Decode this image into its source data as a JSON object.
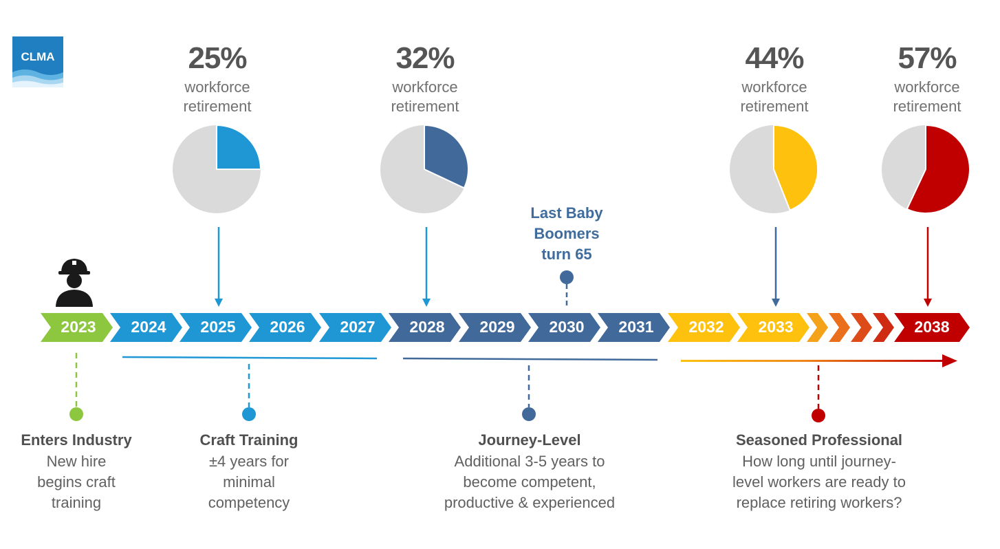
{
  "logo": {
    "text": "CLMA",
    "bg": "#1f7fc0"
  },
  "colors": {
    "green": "#8dc63f",
    "lightblue": "#1e97d4",
    "darkblue": "#41699a",
    "yellow": "#fdc10e",
    "red": "#c00000",
    "grey": "#dadada"
  },
  "retirement": [
    {
      "value": 25,
      "percent_label": "25%",
      "line1": "workforce",
      "line2": "retirement",
      "color": "#1e97d4"
    },
    {
      "value": 32,
      "percent_label": "32%",
      "line1": "workforce",
      "line2": "retirement",
      "color": "#41699a"
    },
    {
      "value": 44,
      "percent_label": "44%",
      "line1": "workforce",
      "line2": "retirement",
      "color": "#fdc10e"
    },
    {
      "value": 57,
      "percent_label": "57%",
      "line1": "workforce",
      "line2": "retirement",
      "color": "#c00000"
    }
  ],
  "timeline": {
    "years": [
      "2023",
      "2024",
      "2025",
      "2026",
      "2027",
      "2028",
      "2029",
      "2030",
      "2031",
      "2032",
      "2033",
      "2038"
    ]
  },
  "milestone": {
    "line1": "Last Baby",
    "line2": "Boomers",
    "line3": "turn 65"
  },
  "stages": [
    {
      "title": "Enters Industry",
      "desc1": "New hire",
      "desc2": "begins craft",
      "desc3": "training"
    },
    {
      "title": "Craft Training",
      "desc1": "±4 years for",
      "desc2": "minimal",
      "desc3": "competency"
    },
    {
      "title": "Journey-Level",
      "desc1": "Additional 3-5 years to",
      "desc2": "become competent,",
      "desc3": "productive & experienced"
    },
    {
      "title": "Seasoned Professional",
      "desc1": "How long until journey-",
      "desc2": "level workers are ready to",
      "desc3": "replace retiring workers?"
    }
  ]
}
